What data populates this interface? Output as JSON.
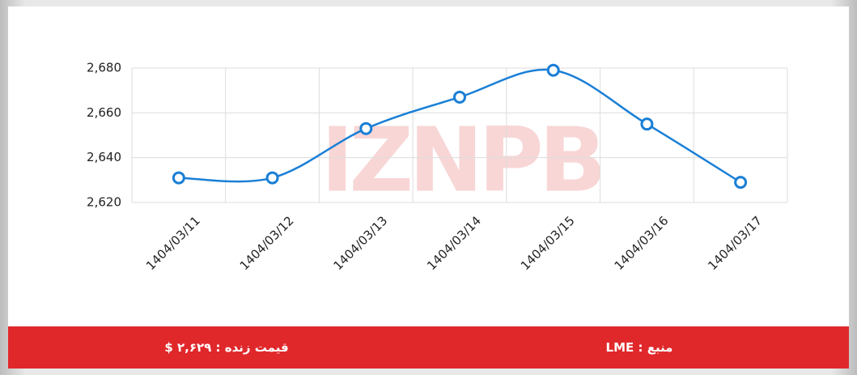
{
  "chart_data": {
    "type": "line",
    "watermark": "IZNPB",
    "categories": [
      "1404/03/11",
      "1404/03/12",
      "1404/03/13",
      "1404/03/14",
      "1404/03/15",
      "1404/03/16",
      "1404/03/17"
    ],
    "series": [
      {
        "color": "#1a7fd6",
        "values": [
          2631,
          2631,
          2653,
          2667,
          2679,
          2655,
          2629
        ]
      }
    ],
    "ylim": [
      2620,
      2680
    ],
    "yticks": [
      {
        "value": 2620,
        "label": "2,620"
      },
      {
        "value": 2640,
        "label": "2,640"
      },
      {
        "value": 2660,
        "label": "2,660"
      },
      {
        "value": 2680,
        "label": "2,680"
      }
    ],
    "grid": true
  },
  "footer": {
    "price": "قیمت زنده : ۲,۶۲۹ $",
    "source": "منبع : LME"
  }
}
